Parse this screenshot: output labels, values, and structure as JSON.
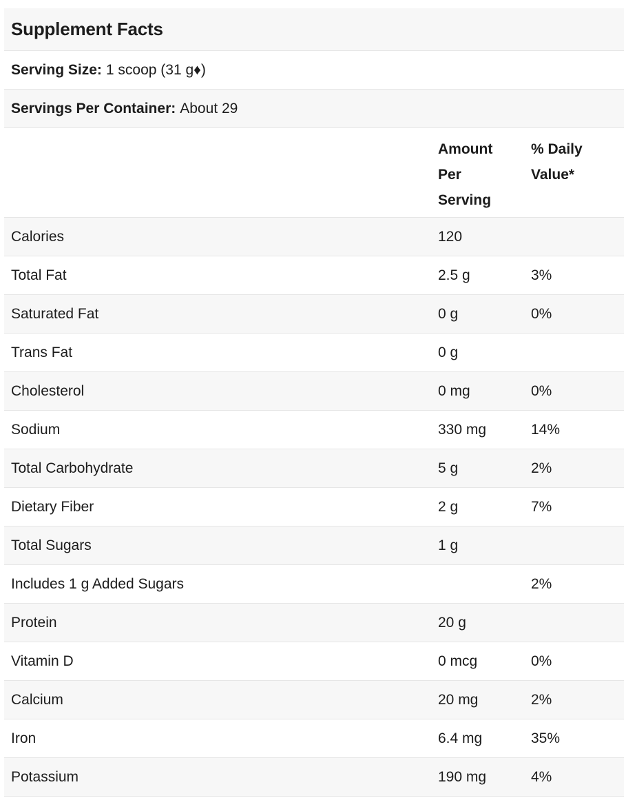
{
  "title": "Supplement Facts",
  "serving_size": {
    "label": "Serving Size:",
    "value": "1 scoop (31 g♦)"
  },
  "servings_per_container": {
    "label": "Servings Per Container:",
    "value": "About 29"
  },
  "columns": {
    "amount": "Amount Per Serving",
    "amount_lines": [
      "Amount",
      "Per",
      "Serving"
    ],
    "dv_lines": [
      "% Daily",
      "Value*"
    ]
  },
  "rows": [
    {
      "name": "Calories",
      "amount": "120",
      "dv": ""
    },
    {
      "name": "Total Fat",
      "amount": "2.5 g",
      "dv": "3%"
    },
    {
      "name": "Saturated Fat",
      "amount": "0 g",
      "dv": "0%"
    },
    {
      "name": "Trans Fat",
      "amount": "0 g",
      "dv": ""
    },
    {
      "name": "Cholesterol",
      "amount": "0 mg",
      "dv": "0%"
    },
    {
      "name": "Sodium",
      "amount": "330 mg",
      "dv": "14%"
    },
    {
      "name": "Total Carbohydrate",
      "amount": "5 g",
      "dv": "2%"
    },
    {
      "name": "Dietary Fiber",
      "amount": "2 g",
      "dv": "7%"
    },
    {
      "name": "Total Sugars",
      "amount": "1 g",
      "dv": ""
    },
    {
      "name": "Includes 1 g Added Sugars",
      "amount": "",
      "dv": "2%"
    },
    {
      "name": "Protein",
      "amount": "20 g",
      "dv": ""
    },
    {
      "name": "Vitamin D",
      "amount": "0 mcg",
      "dv": "0%"
    },
    {
      "name": "Calcium",
      "amount": "20 mg",
      "dv": "2%"
    },
    {
      "name": "Iron",
      "amount": "6.4 mg",
      "dv": "35%"
    },
    {
      "name": "Potassium",
      "amount": "190 mg",
      "dv": "4%"
    }
  ]
}
